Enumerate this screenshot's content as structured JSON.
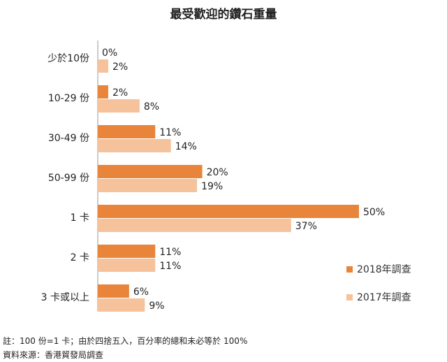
{
  "chart_data": {
    "type": "bar",
    "orientation": "horizontal",
    "title": "最受歡迎的鑽石重量",
    "categories": [
      "少於10份",
      "10-29 份",
      "30-49 份",
      "50-99 份",
      "1 卡",
      "2 卡",
      "3 卡或以上"
    ],
    "series": [
      {
        "name": "2018年調查",
        "values": [
          0,
          2,
          11,
          20,
          50,
          11,
          6
        ],
        "labels": [
          "0%",
          "2%",
          "11%",
          "20%",
          "50%",
          "11%",
          "6%"
        ],
        "color": "#E8853A"
      },
      {
        "name": "2017年調查",
        "values": [
          2,
          8,
          14,
          19,
          37,
          11,
          9
        ],
        "labels": [
          "2%",
          "8%",
          "14%",
          "19%",
          "37%",
          "11%",
          "9%"
        ],
        "color": "#F5C29C"
      }
    ],
    "xlim": [
      0,
      55
    ],
    "grid": false,
    "legend_position": "bottom-right"
  },
  "notes": {
    "note": "註：100 份=1 卡；由於四捨五入，百分率的總和未必等於 100%",
    "source": "資料來源：香港貿發局調查"
  }
}
